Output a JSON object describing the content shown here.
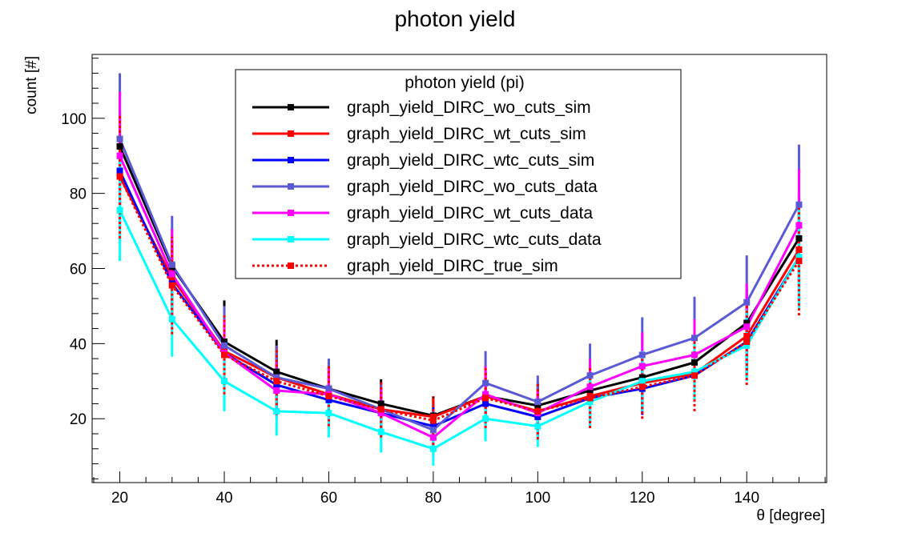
{
  "chart_data": {
    "type": "line",
    "title": "photon yield",
    "xlabel": "θ [degree]",
    "ylabel": "count [#]",
    "xlim": [
      14.7,
      155.3
    ],
    "ylim": [
      3.0,
      117.0
    ],
    "xticks": [
      20,
      40,
      60,
      80,
      100,
      120,
      140
    ],
    "yticks": [
      20,
      40,
      60,
      80,
      100
    ],
    "grid": false,
    "legend": {
      "title": "photon yield (pi)",
      "placement": "top-center"
    },
    "x": [
      20,
      30,
      40,
      50,
      60,
      70,
      80,
      90,
      100,
      110,
      120,
      130,
      140,
      150
    ],
    "series": [
      {
        "name": "graph_yield_DIRC_wo_cuts_sim",
        "color": "#000000",
        "dashed": false,
        "values": [
          92.5,
          60.5,
          40.5,
          32.5,
          28.0,
          24.0,
          20.8,
          26.0,
          23.5,
          27.5,
          31.0,
          35.0,
          45.5,
          68.0
        ],
        "errors": [
          9.0,
          7.0,
          11.0,
          8.5,
          7.0,
          6.5,
          5.0,
          6.5,
          6.0,
          7.0,
          7.0,
          7.5,
          9.0,
          12.0
        ]
      },
      {
        "name": "graph_yield_DIRC_wt_cuts_sim",
        "color": "#ff0000",
        "dashed": false,
        "values": [
          84.5,
          57.5,
          38.0,
          31.0,
          26.5,
          22.5,
          20.5,
          26.0,
          22.0,
          26.0,
          29.5,
          32.0,
          42.0,
          65.0
        ],
        "errors": [
          8.5,
          7.0,
          10.0,
          8.0,
          6.5,
          6.0,
          5.0,
          6.5,
          5.5,
          6.5,
          7.0,
          7.0,
          8.5,
          12.0
        ]
      },
      {
        "name": "graph_yield_DIRC_wtc_cuts_sim",
        "color": "#0000ff",
        "dashed": false,
        "values": [
          86.0,
          56.0,
          37.5,
          29.0,
          25.0,
          21.5,
          18.0,
          24.0,
          20.5,
          25.5,
          28.0,
          31.5,
          40.5,
          63.0
        ],
        "errors": [
          9.0,
          7.0,
          10.0,
          8.0,
          6.5,
          6.0,
          5.0,
          6.0,
          5.5,
          6.5,
          7.0,
          7.0,
          8.5,
          12.0
        ]
      },
      {
        "name": "graph_yield_DIRC_wo_cuts_data",
        "color": "#5a5ad6",
        "dashed": false,
        "values": [
          94.5,
          61.0,
          39.5,
          31.0,
          28.0,
          22.5,
          17.0,
          29.5,
          24.5,
          31.5,
          37.0,
          41.5,
          51.0,
          77.0
        ],
        "errors": [
          17.5,
          13.0,
          10.5,
          8.5,
          8.0,
          7.0,
          5.5,
          8.5,
          7.0,
          8.5,
          10.0,
          11.0,
          12.5,
          16.0
        ]
      },
      {
        "name": "graph_yield_DIRC_wt_cuts_data",
        "color": "#ff00ff",
        "dashed": false,
        "values": [
          90.0,
          58.5,
          37.5,
          27.5,
          26.5,
          21.5,
          15.0,
          26.5,
          21.5,
          28.5,
          34.0,
          37.0,
          44.5,
          71.5
        ],
        "errors": [
          17.0,
          12.0,
          9.0,
          7.5,
          7.0,
          6.5,
          5.0,
          7.5,
          6.0,
          7.5,
          9.0,
          9.5,
          11.5,
          15.0
        ]
      },
      {
        "name": "graph_yield_DIRC_wtc_cuts_data",
        "color": "#00ffff",
        "dashed": false,
        "values": [
          75.5,
          46.5,
          30.0,
          22.0,
          21.5,
          16.5,
          12.0,
          20.0,
          18.0,
          24.5,
          30.0,
          32.5,
          39.5,
          63.0
        ],
        "errors": [
          13.5,
          10.0,
          8.0,
          6.5,
          6.5,
          5.5,
          4.5,
          6.0,
          5.5,
          6.5,
          8.0,
          8.0,
          9.5,
          14.0
        ]
      },
      {
        "name": "graph_yield_DIRC_true_sim",
        "color": "#ff0000",
        "dashed": true,
        "values": [
          84.5,
          55.5,
          37.0,
          30.0,
          26.0,
          22.5,
          19.5,
          25.5,
          22.0,
          25.5,
          28.5,
          31.5,
          40.5,
          62.0
        ],
        "errors": [
          16.5,
          13.0,
          10.5,
          9.0,
          8.0,
          7.5,
          6.5,
          8.0,
          7.5,
          8.0,
          8.5,
          9.5,
          11.5,
          14.5
        ]
      }
    ]
  }
}
